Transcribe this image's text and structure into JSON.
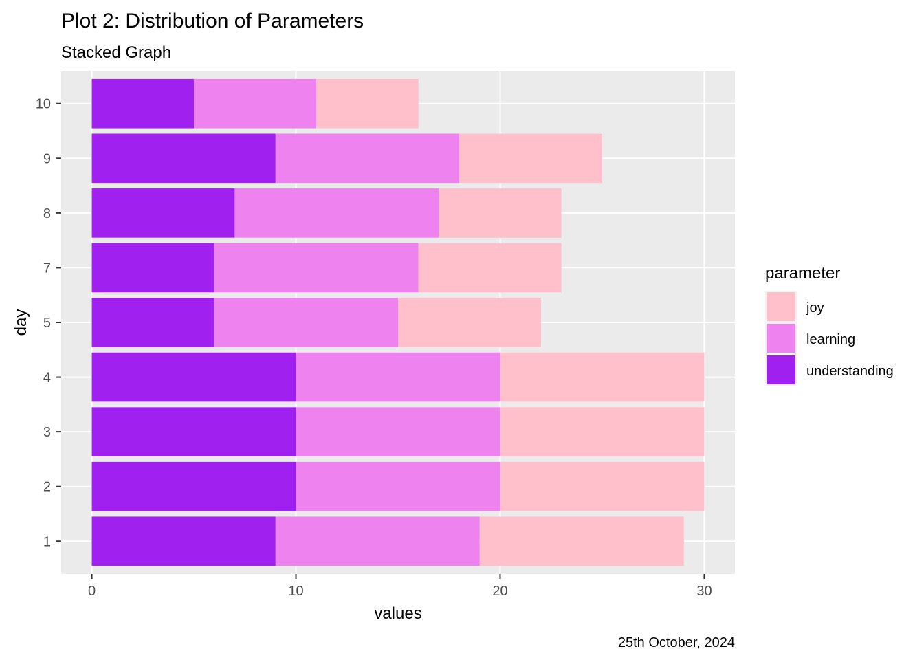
{
  "chart_data": {
    "type": "bar",
    "orientation": "horizontal",
    "stacked": true,
    "title": "Plot 2: Distribution of  Parameters",
    "subtitle": "Stacked Graph",
    "caption": "25th October, 2024",
    "xlabel": "values",
    "ylabel": "day",
    "xlim": [
      -1.5,
      31.5
    ],
    "xticks": [
      0,
      10,
      20,
      30
    ],
    "grid": true,
    "legend": {
      "title": "parameter",
      "position": "right",
      "entries": [
        "joy",
        "learning",
        "understanding"
      ]
    },
    "categories": [
      "1",
      "2",
      "3",
      "4",
      "5",
      "7",
      "8",
      "9",
      "10"
    ],
    "series": [
      {
        "name": "understanding",
        "color": "#a020f0",
        "values": [
          9,
          10,
          10,
          10,
          6,
          6,
          7,
          9,
          5
        ]
      },
      {
        "name": "learning",
        "color": "#ee82ee",
        "values": [
          10,
          10,
          10,
          10,
          9,
          10,
          10,
          9,
          6
        ]
      },
      {
        "name": "joy",
        "color": "#ffc0cb",
        "values": [
          10,
          10,
          10,
          10,
          7,
          7,
          6,
          7,
          5
        ]
      }
    ],
    "colors": {
      "panel_background": "#ebebeb",
      "grid_major": "#ffffff",
      "tick_text": "#4d4d4d",
      "legend_joy": "#ffc0cb",
      "legend_learning": "#ee82ee",
      "legend_understanding": "#a020f0"
    }
  }
}
